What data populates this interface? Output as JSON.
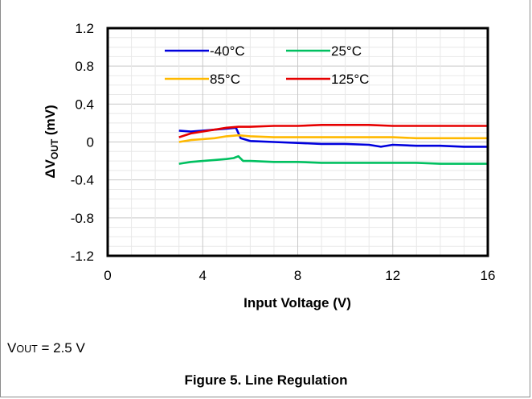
{
  "chart_data": {
    "type": "line",
    "xlabel": "Input Voltage (V)",
    "ylabel_prefix": "ΔV",
    "ylabel_sub": "OUT",
    "ylabel_suffix": " (mV)",
    "xlim": [
      0,
      16
    ],
    "ylim": [
      -1.2,
      1.2
    ],
    "x_ticks": [
      "0",
      "4",
      "8",
      "12",
      "16"
    ],
    "y_ticks": [
      "1.2",
      "0.8",
      "0.4",
      "0",
      "-0.4",
      "-0.8",
      "-1.2"
    ],
    "grid": true,
    "legend_position": "top",
    "series": [
      {
        "name": "-40°C",
        "color": "#0000dd",
        "x": [
          3,
          3.5,
          4,
          4.5,
          5,
          5.4,
          5.6,
          6,
          7,
          8,
          9,
          10,
          11,
          11.5,
          12,
          13,
          14,
          15,
          16
        ],
        "y": [
          0.12,
          0.11,
          0.12,
          0.13,
          0.14,
          0.15,
          0.04,
          0.01,
          0.0,
          -0.01,
          -0.02,
          -0.02,
          -0.03,
          -0.05,
          -0.03,
          -0.04,
          -0.04,
          -0.05,
          -0.05
        ]
      },
      {
        "name": "25°C",
        "color": "#00c060",
        "x": [
          3,
          3.5,
          4,
          4.5,
          5,
          5.3,
          5.5,
          5.7,
          6,
          7,
          8,
          9,
          10,
          11,
          12,
          13,
          14,
          15,
          16
        ],
        "y": [
          -0.23,
          -0.21,
          -0.2,
          -0.19,
          -0.18,
          -0.17,
          -0.15,
          -0.2,
          -0.2,
          -0.21,
          -0.21,
          -0.22,
          -0.22,
          -0.22,
          -0.22,
          -0.22,
          -0.23,
          -0.23,
          -0.23
        ]
      },
      {
        "name": "85°C",
        "color": "#ffb900",
        "x": [
          3,
          3.5,
          4,
          4.5,
          5,
          5.5,
          6,
          7,
          8,
          9,
          10,
          11,
          12,
          13,
          14,
          15,
          16
        ],
        "y": [
          0.0,
          0.02,
          0.03,
          0.04,
          0.06,
          0.07,
          0.06,
          0.05,
          0.05,
          0.05,
          0.05,
          0.05,
          0.05,
          0.04,
          0.04,
          0.04,
          0.04
        ]
      },
      {
        "name": "125°C",
        "color": "#e60000",
        "x": [
          3,
          3.5,
          4,
          4.5,
          5,
          5.5,
          6,
          7,
          8,
          9,
          10,
          11,
          12,
          13,
          14,
          15,
          16
        ],
        "y": [
          0.05,
          0.09,
          0.11,
          0.13,
          0.15,
          0.16,
          0.16,
          0.17,
          0.17,
          0.18,
          0.18,
          0.18,
          0.17,
          0.17,
          0.17,
          0.17,
          0.17
        ]
      }
    ]
  },
  "condition": {
    "prefix": "V",
    "sub": "OUT",
    "value": " = 2.5 V"
  },
  "caption": "Figure 5. Line Regulation"
}
